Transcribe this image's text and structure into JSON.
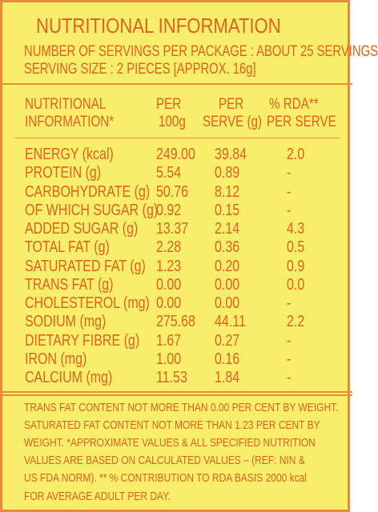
{
  "title": "NUTRITIONAL INFORMATION",
  "servings": [
    "NUMBER OF SERVINGS PER PACKAGE : ABOUT 25 SERVINGS",
    "SERVING SIZE : 2 PIECES [APPROX. 16g]"
  ],
  "table": {
    "header": [
      [
        "NUTRITIONAL",
        "INFORMATION*"
      ],
      [
        "PER",
        "100g"
      ],
      [
        "PER",
        "SERVE (g)"
      ],
      [
        "% RDA**",
        "PER SERVE"
      ]
    ],
    "rows": [
      [
        "ENERGY (kcal)",
        "249.00",
        "39.84",
        "2.0"
      ],
      [
        "PROTEIN (g)",
        "5.54",
        "0.89",
        "-"
      ],
      [
        "CARBOHYDRATE (g)",
        "50.76",
        "8.12",
        "-"
      ],
      [
        "OF WHICH SUGAR (g)",
        "0.92",
        "0.15",
        "-"
      ],
      [
        "ADDED SUGAR (g)",
        "13.37",
        "2.14",
        "4.3"
      ],
      [
        "TOTAL FAT (g)",
        "2.28",
        "0.36",
        "0.5"
      ],
      [
        "SATURATED FAT (g)",
        "1.23",
        "0.20",
        "0.9"
      ],
      [
        "TRANS FAT (g)",
        "0.00",
        "0.00",
        "0.0"
      ],
      [
        "CHOLESTEROL (mg)",
        "0.00",
        "0.00",
        "-"
      ],
      [
        "SODIUM (mg)",
        "275.68",
        "44.11",
        "2.2"
      ],
      [
        "DIETARY FIBRE (g)",
        "1.67",
        "0.27",
        "-"
      ],
      [
        "IRON (mg)",
        "1.00",
        "0.16",
        "-"
      ],
      [
        "CALCIUM (mg)",
        "11.53",
        "1.84",
        "-"
      ]
    ]
  },
  "footer": [
    "TRANS FAT CONTENT NOT MORE THAN 0.00 PER CENT BY WEIGHT.",
    "SATURATED FAT CONTENT NOT MORE THAN 1.23 PER CENT BY",
    "WEIGHT. *APPROXIMATE VALUES & ALL SPECIFIED NUTRITION",
    "VALUES ARE BASED ON CALCULATED VALUES – (REF: NIN &",
    "US FDA NORM).  ** % CONTRIBUTION TO RDA  BASIS 2000 kcal",
    "FOR AVERAGE ADULT PER DAY."
  ]
}
